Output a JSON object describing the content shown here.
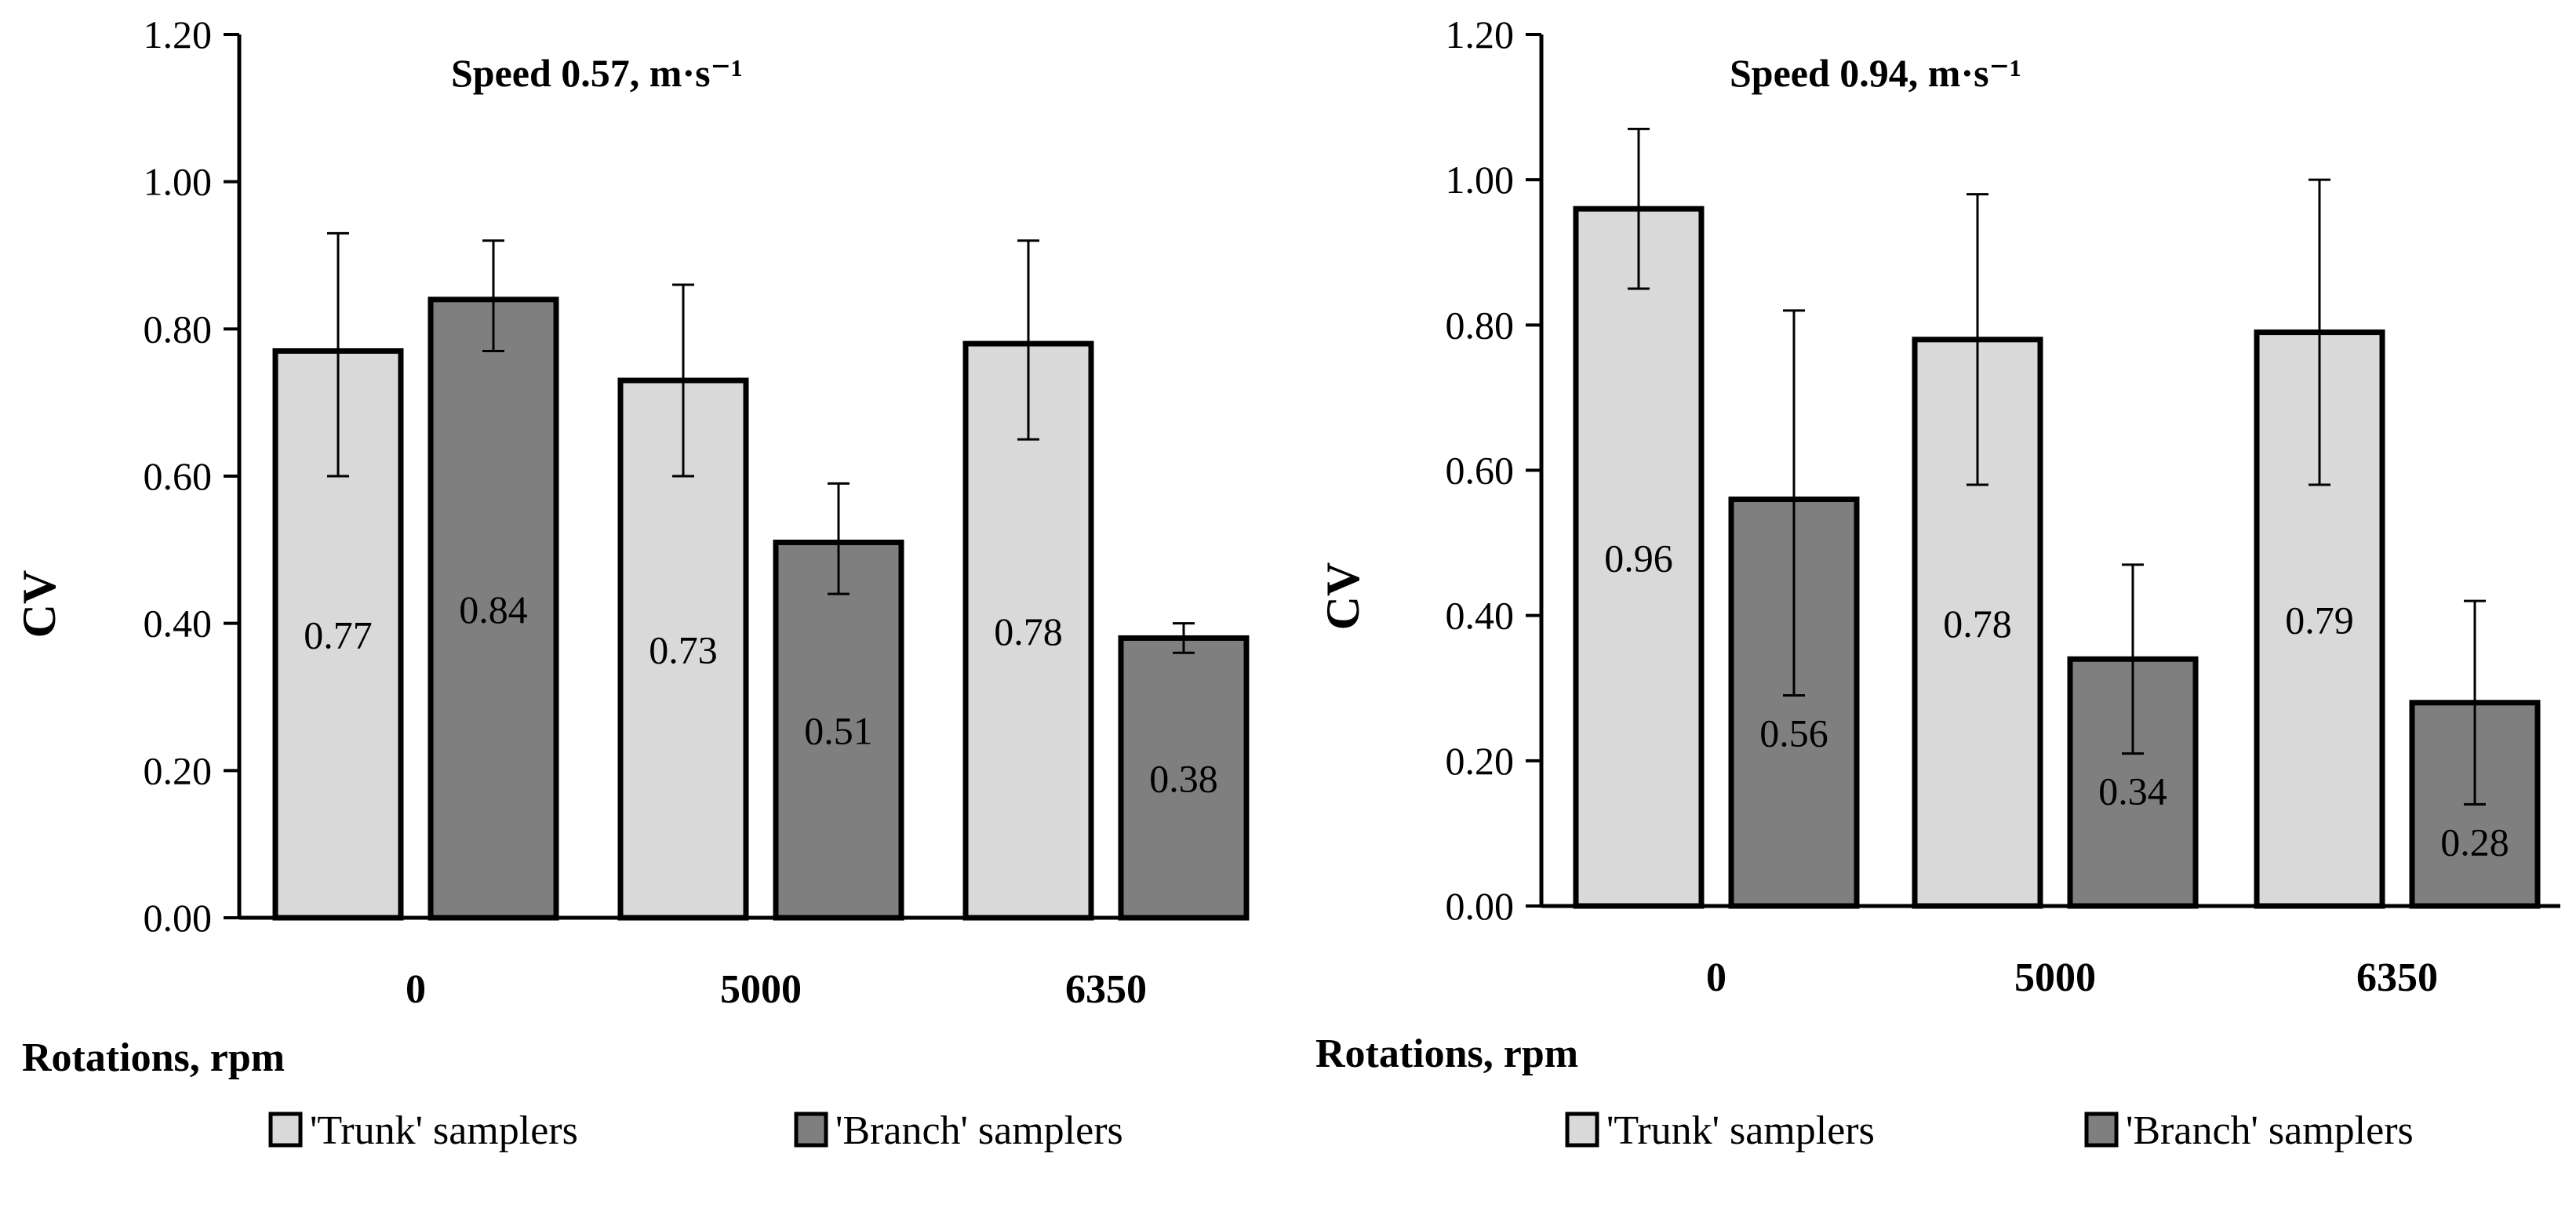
{
  "chart_data": [
    {
      "type": "bar",
      "title": "Speed 0.57, m·s⁻¹",
      "xlabel": "Rotations, rpm",
      "ylabel": "CV",
      "ylim": [
        0,
        1.2
      ],
      "yticks": [
        "0.00",
        "0.20",
        "0.40",
        "0.60",
        "0.80",
        "1.00",
        "1.20"
      ],
      "categories": [
        "0",
        "5000",
        "6350"
      ],
      "series": [
        {
          "name": "'Trunk' samplers",
          "color": "#d9d9d9",
          "values": [
            0.77,
            0.73,
            0.78
          ],
          "labels": [
            "0.77",
            "0.73",
            "0.78"
          ],
          "error_low": [
            0.6,
            0.6,
            0.65
          ],
          "error_high": [
            0.93,
            0.86,
            0.92
          ]
        },
        {
          "name": "'Branch' samplers",
          "color": "#7f7f7f",
          "values": [
            0.84,
            0.51,
            0.38
          ],
          "labels": [
            "0.84",
            "0.51",
            "0.38"
          ],
          "error_low": [
            0.77,
            0.44,
            0.36
          ],
          "error_high": [
            0.92,
            0.59,
            0.4
          ]
        }
      ],
      "legend": "bottom"
    },
    {
      "type": "bar",
      "title": "Speed 0.94, m·s⁻¹",
      "xlabel": "Rotations, rpm",
      "ylabel": "CV",
      "ylim": [
        0,
        1.2
      ],
      "yticks": [
        "0.00",
        "0.20",
        "0.40",
        "0.60",
        "0.80",
        "1.00",
        "1.20"
      ],
      "categories": [
        "0",
        "5000",
        "6350"
      ],
      "series": [
        {
          "name": "'Trunk' samplers",
          "color": "#d9d9d9",
          "values": [
            0.96,
            0.78,
            0.79
          ],
          "labels": [
            "0.96",
            "0.78",
            "0.79"
          ],
          "error_low": [
            0.85,
            0.58,
            0.58
          ],
          "error_high": [
            1.07,
            0.98,
            1.0
          ]
        },
        {
          "name": "'Branch' samplers",
          "color": "#7f7f7f",
          "values": [
            0.56,
            0.34,
            0.28
          ],
          "labels": [
            "0.56",
            "0.34",
            "0.28"
          ],
          "error_low": [
            0.29,
            0.21,
            0.14
          ],
          "error_high": [
            0.82,
            0.47,
            0.42
          ]
        }
      ],
      "legend": "bottom"
    }
  ]
}
